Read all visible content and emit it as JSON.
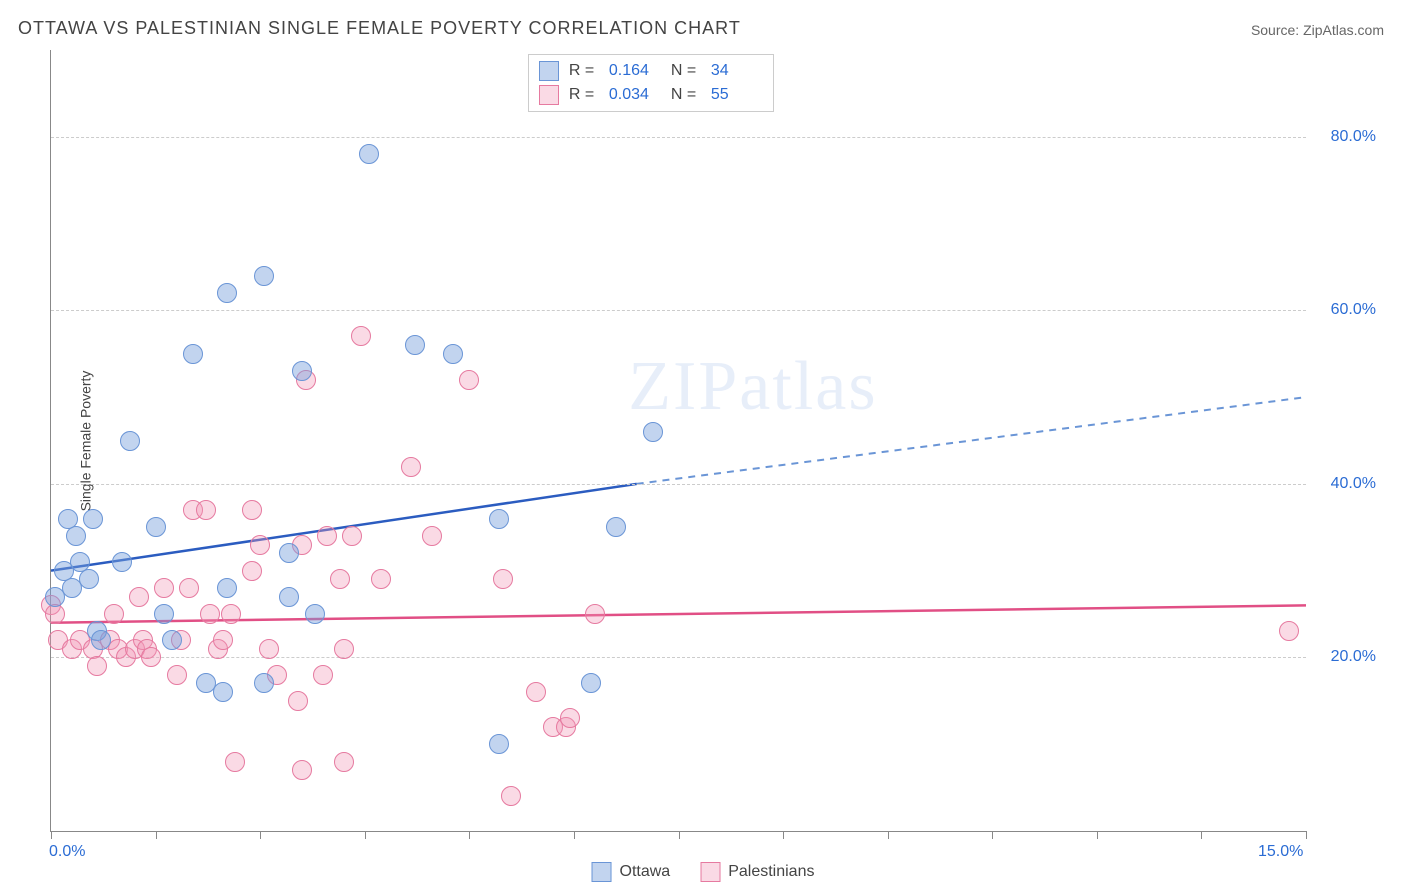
{
  "title": "OTTAWA VS PALESTINIAN SINGLE FEMALE POVERTY CORRELATION CHART",
  "source_label": "Source: ZipAtlas.com",
  "ylabel": "Single Female Poverty",
  "watermark": "ZIPatlas",
  "chart": {
    "type": "scatter",
    "xlim": [
      0,
      15
    ],
    "ylim": [
      0,
      90
    ],
    "xtick_positions": [
      0,
      1.25,
      2.5,
      3.75,
      5.0,
      6.25,
      7.5,
      8.75,
      10.0,
      11.25,
      12.5,
      13.75,
      15.0
    ],
    "xtick_labels": {
      "0": "0.0%",
      "15": "15.0%"
    },
    "ytick_positions": [
      20,
      40,
      60,
      80
    ],
    "ytick_labels": [
      "20.0%",
      "40.0%",
      "60.0%",
      "80.0%"
    ],
    "grid_color": "#cccccc",
    "axis_color": "#888888",
    "background_color": "#ffffff",
    "marker_radius": 10,
    "tick_label_color": "#2b6cd4",
    "title_fontsize": 18,
    "label_fontsize": 14
  },
  "series": {
    "blue": {
      "label": "Ottawa",
      "fill": "rgba(120,160,220,0.45)",
      "stroke": "#6a95d6",
      "R": "0.164",
      "N": "34",
      "trend": {
        "x0": 0,
        "y0": 30,
        "x1": 7.0,
        "y1": 40,
        "x2": 15.0,
        "y2": 50,
        "solid_color": "#2b5cc0",
        "dash_color": "#6a95d6",
        "width": 2.5
      },
      "points": [
        [
          0.15,
          30
        ],
        [
          0.2,
          36
        ],
        [
          0.25,
          28
        ],
        [
          0.35,
          31
        ],
        [
          0.45,
          29
        ],
        [
          0.5,
          36
        ],
        [
          0.55,
          23
        ],
        [
          0.85,
          31
        ],
        [
          0.95,
          45
        ],
        [
          1.25,
          35
        ],
        [
          1.35,
          25
        ],
        [
          1.45,
          22
        ],
        [
          1.7,
          55
        ],
        [
          1.85,
          17
        ],
        [
          2.1,
          28
        ],
        [
          2.1,
          62
        ],
        [
          2.55,
          64
        ],
        [
          2.85,
          32
        ],
        [
          2.85,
          27
        ],
        [
          3.0,
          53
        ],
        [
          3.15,
          25
        ],
        [
          2.55,
          17
        ],
        [
          3.8,
          78
        ],
        [
          4.35,
          56
        ],
        [
          4.8,
          55
        ],
        [
          5.35,
          36
        ],
        [
          5.35,
          10
        ],
        [
          6.45,
          17
        ],
        [
          6.75,
          35
        ],
        [
          7.2,
          46
        ],
        [
          2.05,
          16
        ],
        [
          0.6,
          22
        ],
        [
          0.3,
          34
        ],
        [
          0.05,
          27
        ]
      ]
    },
    "pink": {
      "label": "Palestinians",
      "fill": "rgba(240,150,180,0.35)",
      "stroke": "#e67aa0",
      "R": "0.034",
      "N": "55",
      "trend": {
        "x0": 0,
        "y0": 24,
        "x1": 15,
        "y1": 26,
        "color": "#e14f85",
        "width": 2.5
      },
      "points": [
        [
          0.0,
          26
        ],
        [
          0.05,
          25
        ],
        [
          0.08,
          22
        ],
        [
          0.25,
          21
        ],
        [
          0.35,
          22
        ],
        [
          0.5,
          21
        ],
        [
          0.55,
          19
        ],
        [
          0.7,
          22
        ],
        [
          0.75,
          25
        ],
        [
          0.8,
          21
        ],
        [
          0.9,
          20
        ],
        [
          1.0,
          21
        ],
        [
          1.05,
          27
        ],
        [
          1.1,
          22
        ],
        [
          1.15,
          21
        ],
        [
          1.2,
          20
        ],
        [
          1.35,
          28
        ],
        [
          1.5,
          18
        ],
        [
          1.55,
          22
        ],
        [
          1.65,
          28
        ],
        [
          1.7,
          37
        ],
        [
          1.85,
          37
        ],
        [
          1.9,
          25
        ],
        [
          2.0,
          21
        ],
        [
          2.15,
          25
        ],
        [
          2.2,
          8
        ],
        [
          2.4,
          30
        ],
        [
          2.4,
          37
        ],
        [
          2.5,
          33
        ],
        [
          2.6,
          21
        ],
        [
          2.7,
          18
        ],
        [
          2.95,
          15
        ],
        [
          3.0,
          7
        ],
        [
          3.0,
          33
        ],
        [
          3.05,
          52
        ],
        [
          3.25,
          18
        ],
        [
          3.3,
          34
        ],
        [
          3.45,
          29
        ],
        [
          3.5,
          8
        ],
        [
          3.5,
          21
        ],
        [
          3.6,
          34
        ],
        [
          3.7,
          57
        ],
        [
          3.95,
          29
        ],
        [
          4.3,
          42
        ],
        [
          4.55,
          34
        ],
        [
          5.0,
          52
        ],
        [
          5.4,
          29
        ],
        [
          5.5,
          4
        ],
        [
          5.8,
          16
        ],
        [
          6.0,
          12
        ],
        [
          6.15,
          12
        ],
        [
          6.2,
          13
        ],
        [
          6.5,
          25
        ],
        [
          14.8,
          23
        ],
        [
          2.05,
          22
        ]
      ]
    }
  },
  "rn_legend": {
    "rows": [
      {
        "series": "blue",
        "R_label": "R =",
        "R_val": "0.164",
        "N_label": "N =",
        "N_val": "34"
      },
      {
        "series": "pink",
        "R_label": "R =",
        "R_val": "0.034",
        "N_label": "N =",
        "N_val": "55"
      }
    ]
  },
  "bottom_legend": [
    {
      "series": "blue",
      "label": "Ottawa"
    },
    {
      "series": "pink",
      "label": "Palestinians"
    }
  ]
}
